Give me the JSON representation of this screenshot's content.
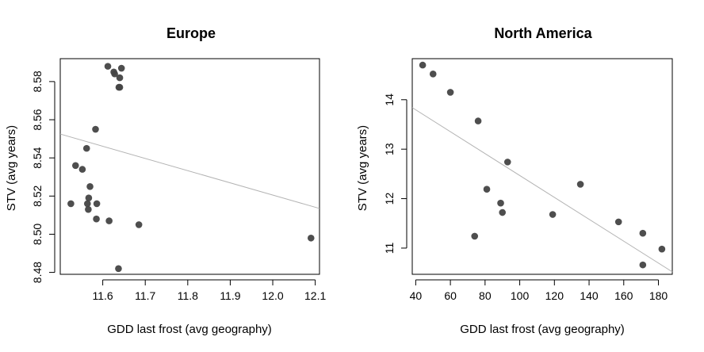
{
  "chart_data": [
    {
      "type": "scatter",
      "title": "Europe",
      "xlabel": "GDD last frost (avg geography)",
      "ylabel": "STV (avg years)",
      "xlim": [
        11.5,
        12.11
      ],
      "ylim": [
        8.479,
        8.592
      ],
      "xticks": [
        11.6,
        11.7,
        11.8,
        11.9,
        12.0,
        12.1
      ],
      "xtick_labels": [
        "11.6",
        "11.7",
        "11.8",
        "11.9",
        "12.0",
        "12.1"
      ],
      "yticks": [
        8.48,
        8.5,
        8.52,
        8.54,
        8.56,
        8.58
      ],
      "ytick_labels": [
        "8.48",
        "8.50",
        "8.52",
        "8.54",
        "8.56",
        "8.58"
      ],
      "grid": false,
      "points": [
        {
          "x": 11.525,
          "y": 8.516
        },
        {
          "x": 11.536,
          "y": 8.536
        },
        {
          "x": 11.552,
          "y": 8.534
        },
        {
          "x": 11.562,
          "y": 8.545
        },
        {
          "x": 11.564,
          "y": 8.516
        },
        {
          "x": 11.566,
          "y": 8.513
        },
        {
          "x": 11.567,
          "y": 8.519
        },
        {
          "x": 11.57,
          "y": 8.525
        },
        {
          "x": 11.583,
          "y": 8.555
        },
        {
          "x": 11.585,
          "y": 8.508
        },
        {
          "x": 11.586,
          "y": 8.516
        },
        {
          "x": 11.612,
          "y": 8.588
        },
        {
          "x": 11.615,
          "y": 8.507
        },
        {
          "x": 11.626,
          "y": 8.585
        },
        {
          "x": 11.628,
          "y": 8.584
        },
        {
          "x": 11.637,
          "y": 8.482
        },
        {
          "x": 11.638,
          "y": 8.577
        },
        {
          "x": 11.64,
          "y": 8.577
        },
        {
          "x": 11.64,
          "y": 8.582
        },
        {
          "x": 11.644,
          "y": 8.587
        },
        {
          "x": 11.685,
          "y": 8.505
        },
        {
          "x": 12.09,
          "y": 8.498
        }
      ],
      "trendline": {
        "x": [
          11.5,
          12.11
        ],
        "y": [
          8.5525,
          8.5135
        ]
      },
      "colors": {
        "point": "#454545",
        "trendline": "#b3b3b3",
        "axis": "#000000"
      }
    },
    {
      "type": "scatter",
      "title": "North America",
      "xlabel": "GDD last frost (avg geography)",
      "ylabel": "STV (avg years)",
      "xlim": [
        38,
        188
      ],
      "ylim": [
        10.47,
        14.83
      ],
      "xticks": [
        40,
        60,
        80,
        100,
        120,
        140,
        160,
        180
      ],
      "xtick_labels": [
        "40",
        "60",
        "80",
        "100",
        "120",
        "140",
        "160",
        "180"
      ],
      "yticks": [
        11,
        12,
        13,
        14
      ],
      "ytick_labels": [
        "11",
        "12",
        "13",
        "14"
      ],
      "grid": false,
      "points": [
        {
          "x": 44,
          "y": 14.7
        },
        {
          "x": 50,
          "y": 14.52
        },
        {
          "x": 60,
          "y": 14.15
        },
        {
          "x": 74,
          "y": 11.24
        },
        {
          "x": 76,
          "y": 13.57
        },
        {
          "x": 81,
          "y": 12.19
        },
        {
          "x": 89,
          "y": 11.91
        },
        {
          "x": 90,
          "y": 11.72
        },
        {
          "x": 93,
          "y": 12.74
        },
        {
          "x": 119,
          "y": 11.68
        },
        {
          "x": 135,
          "y": 12.29
        },
        {
          "x": 157,
          "y": 11.53
        },
        {
          "x": 171,
          "y": 11.3
        },
        {
          "x": 171,
          "y": 10.66
        },
        {
          "x": 182,
          "y": 10.98
        }
      ],
      "trendline": {
        "x": [
          38,
          188
        ],
        "y": [
          13.84,
          10.52
        ]
      },
      "colors": {
        "point": "#454545",
        "trendline": "#b3b3b3",
        "axis": "#000000"
      }
    }
  ]
}
